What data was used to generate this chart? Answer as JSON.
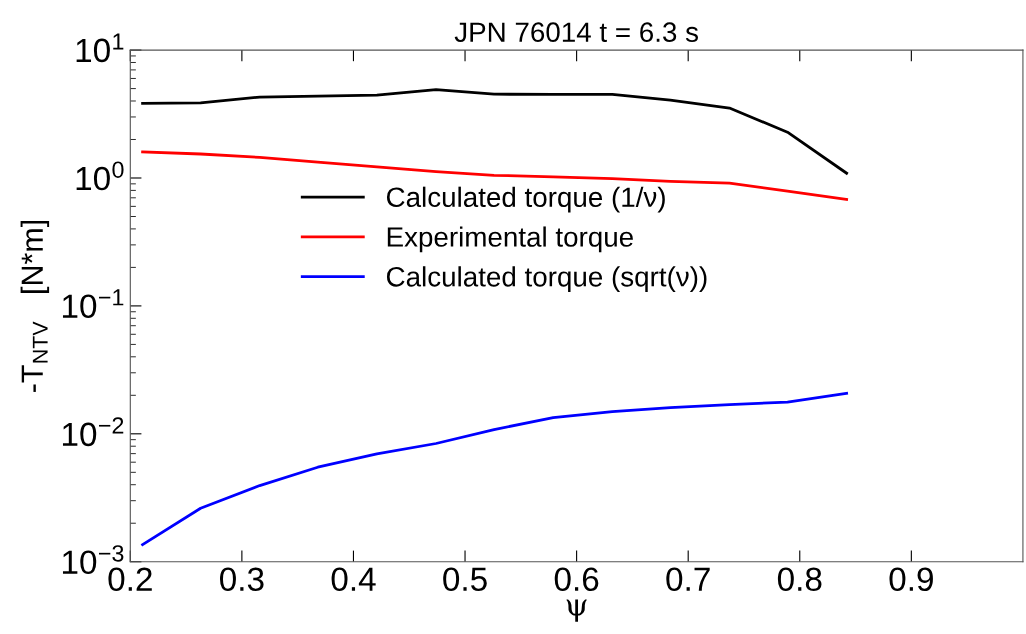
{
  "chart_data": {
    "type": "line",
    "title": "JPN 76014 t = 6.3 s",
    "xlabel": "ψ",
    "ylabel": "-T$_{NTV}$   [N*m]",
    "x": [
      0.211,
      0.263,
      0.316,
      0.368,
      0.421,
      0.474,
      0.526,
      0.579,
      0.632,
      0.684,
      0.737,
      0.789,
      0.842
    ],
    "series": [
      {
        "name": "Calculated torque (1/ν)",
        "color": "#000000",
        "values": [
          3.83,
          3.87,
          4.29,
          4.37,
          4.45,
          4.9,
          4.52,
          4.5,
          4.5,
          4.06,
          3.52,
          2.28,
          1.09
        ]
      },
      {
        "name": "Experimental torque",
        "color": "#ff0000",
        "values": [
          1.6,
          1.54,
          1.45,
          1.33,
          1.22,
          1.12,
          1.05,
          1.02,
          0.99,
          0.94,
          0.91,
          0.79,
          0.68
        ]
      },
      {
        "name": "Calculated torque (sqrt(ν))",
        "color": "#0000ff",
        "values": [
          0.00136,
          0.00262,
          0.00394,
          0.00548,
          0.00698,
          0.0084,
          0.0108,
          0.0134,
          0.0149,
          0.016,
          0.0169,
          0.0177,
          0.0207
        ]
      }
    ],
    "log": "y",
    "xlim": [
      0.2,
      1.0
    ],
    "ylim": [
      0.001,
      10
    ],
    "xticks": [
      0.2,
      0.3,
      0.4,
      0.5,
      0.6,
      0.7,
      0.8,
      0.9
    ],
    "yticks": [
      {
        "value": 0.001,
        "label": "10$^{−3}$"
      },
      {
        "value": 0.01,
        "label": "10$^{−2}$"
      },
      {
        "value": 0.1,
        "label": "10$^{−1}$"
      },
      {
        "value": 1,
        "label": "10$^{0}$"
      },
      {
        "value": 10,
        "label": "10$^{1}$"
      }
    ],
    "grid": false,
    "legend": "center",
    "marker": "none",
    "line_style": "solid"
  }
}
